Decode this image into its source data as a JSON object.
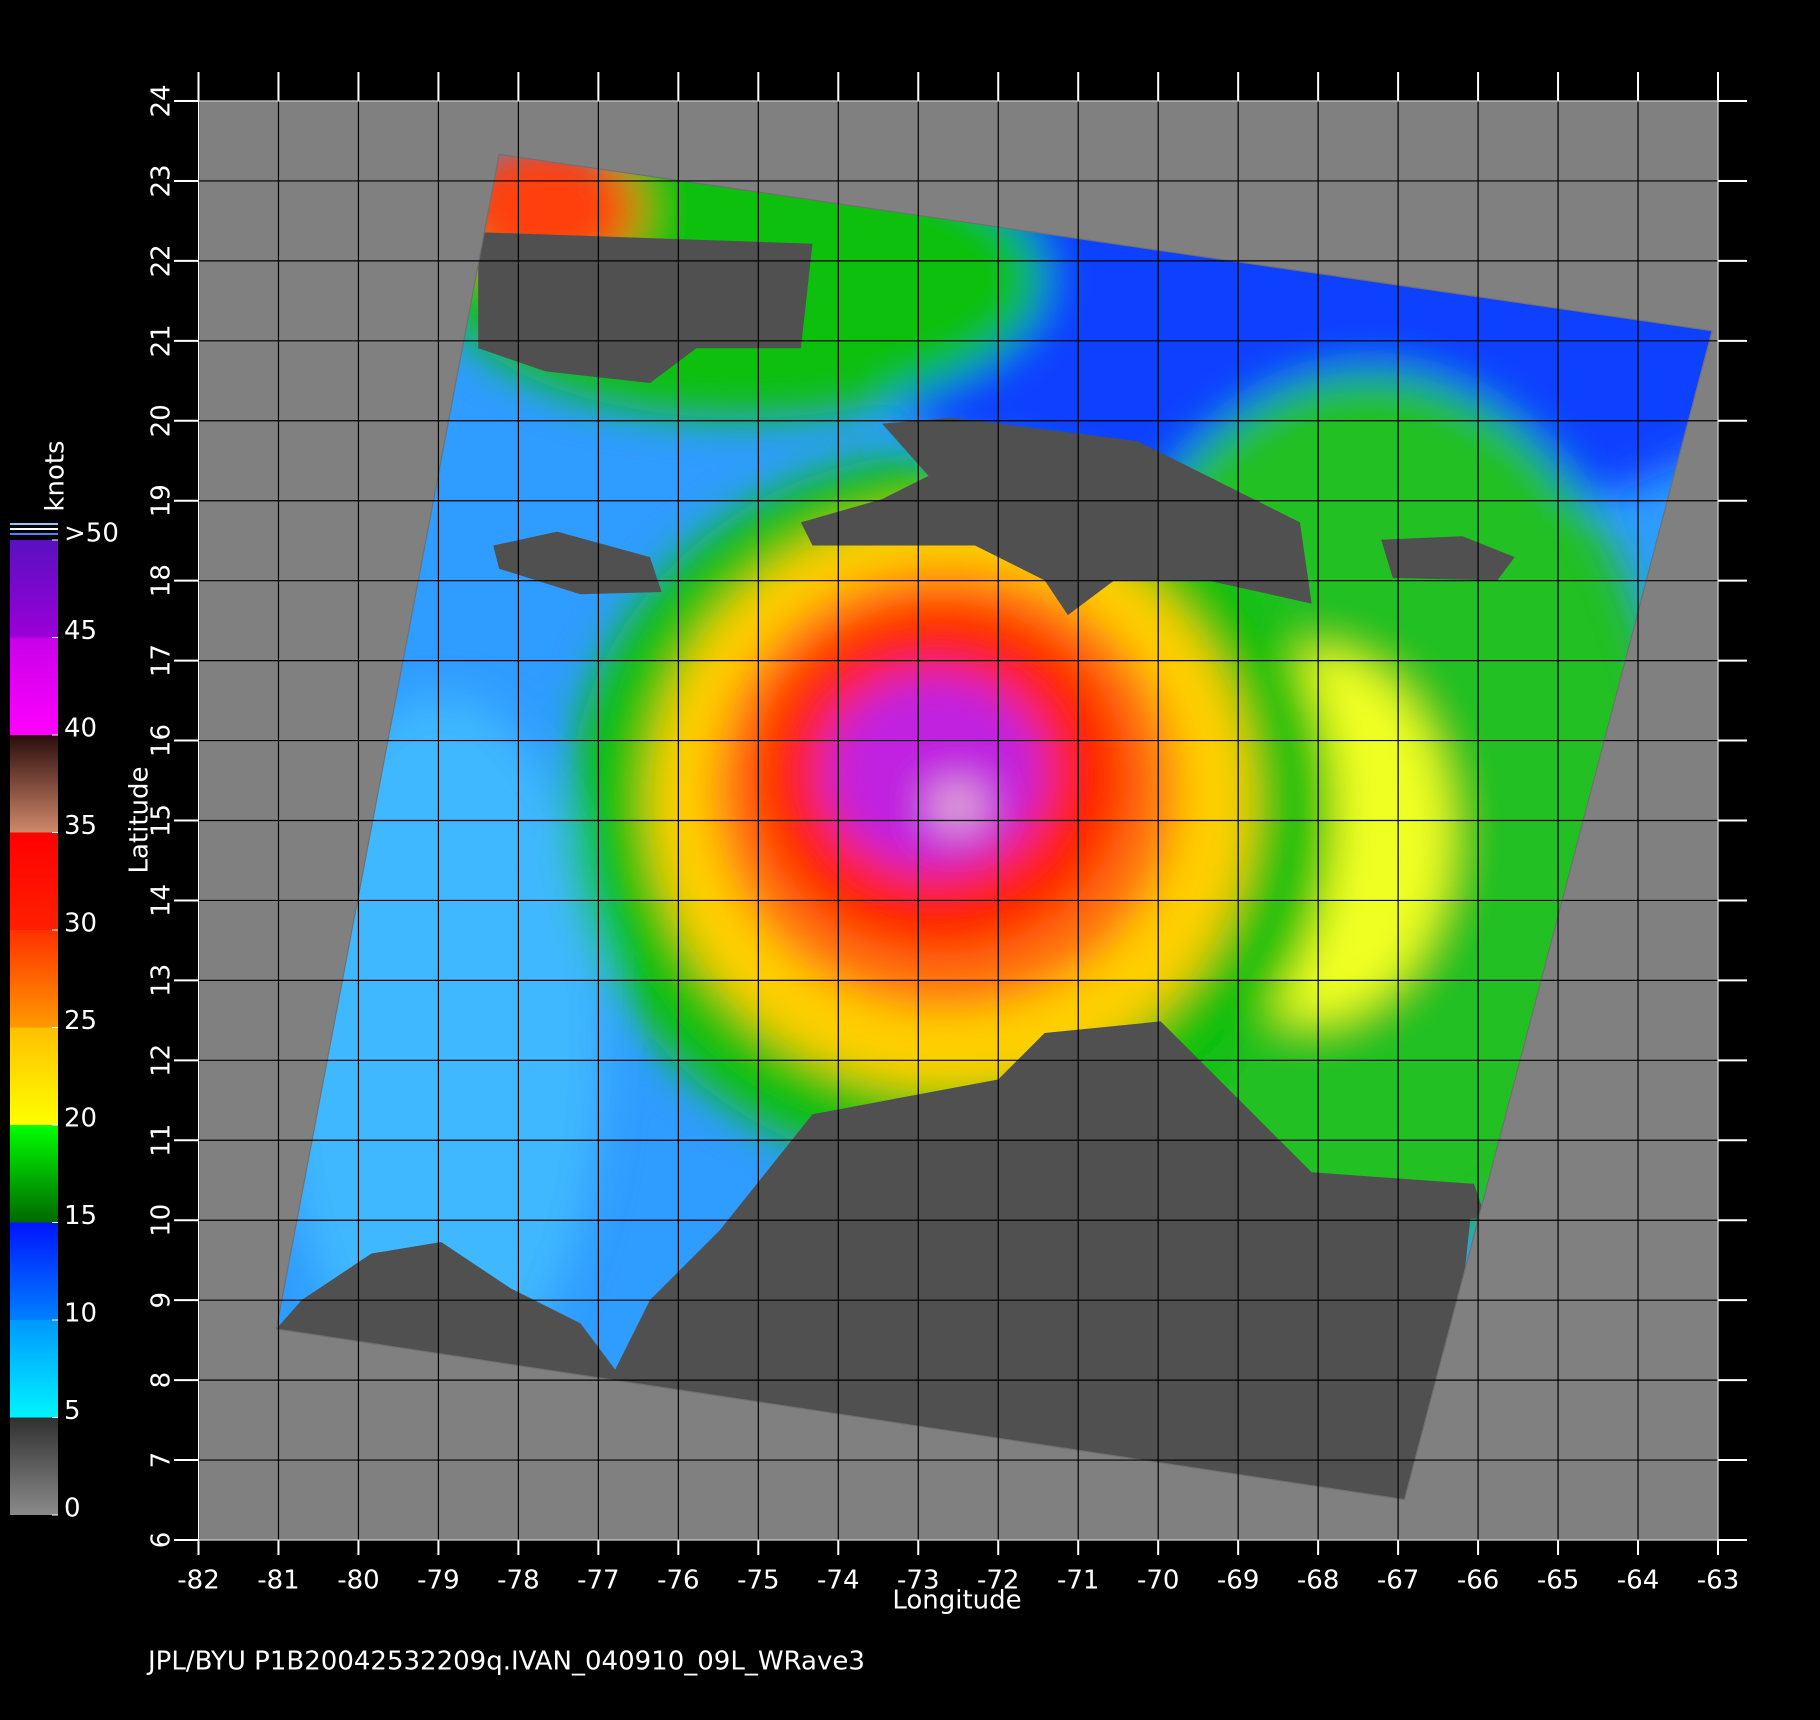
{
  "chart_data": {
    "type": "map",
    "title": "JPL/BYU  P1B20042532209q.IVAN_040910_09L_WRave3",
    "xlabel": "Longitude",
    "ylabel": "Latitude",
    "xlim": [
      -82,
      -63
    ],
    "ylim": [
      6,
      24
    ],
    "xticks": [
      -82,
      -81,
      -80,
      -79,
      -78,
      -77,
      -76,
      -75,
      -74,
      -73,
      -72,
      -71,
      -70,
      -69,
      -68,
      -67,
      -66,
      -65,
      -64,
      -63
    ],
    "yticks": [
      6,
      7,
      8,
      9,
      10,
      11,
      12,
      13,
      14,
      15,
      16,
      17,
      18,
      19,
      20,
      21,
      22,
      23,
      24
    ],
    "grid": true,
    "colorbar": {
      "label": "knots",
      "lim": [
        0,
        50
      ],
      "ticks": [
        0,
        5,
        10,
        15,
        20,
        25,
        30,
        35,
        40,
        45,
        {
          "value": 50,
          "label": ">50"
        }
      ],
      "colors": [
        [
          "#8a8a8a",
          "#303030"
        ],
        [
          "#00f4ff",
          "#0098ff"
        ],
        [
          "#0080ff",
          "#0014ff"
        ],
        [
          "#006800",
          "#00ff00"
        ],
        [
          "#ffff00",
          "#ffc000"
        ],
        [
          "#ff9a00",
          "#ff3000"
        ],
        [
          "#ff2000",
          "#ff0000"
        ],
        [
          "#d0886a",
          "#2a0c0c"
        ],
        [
          "#ff00ff",
          "#c800e8"
        ],
        [
          "#9a00d8",
          "#5a10c0"
        ]
      ]
    }
  }
}
